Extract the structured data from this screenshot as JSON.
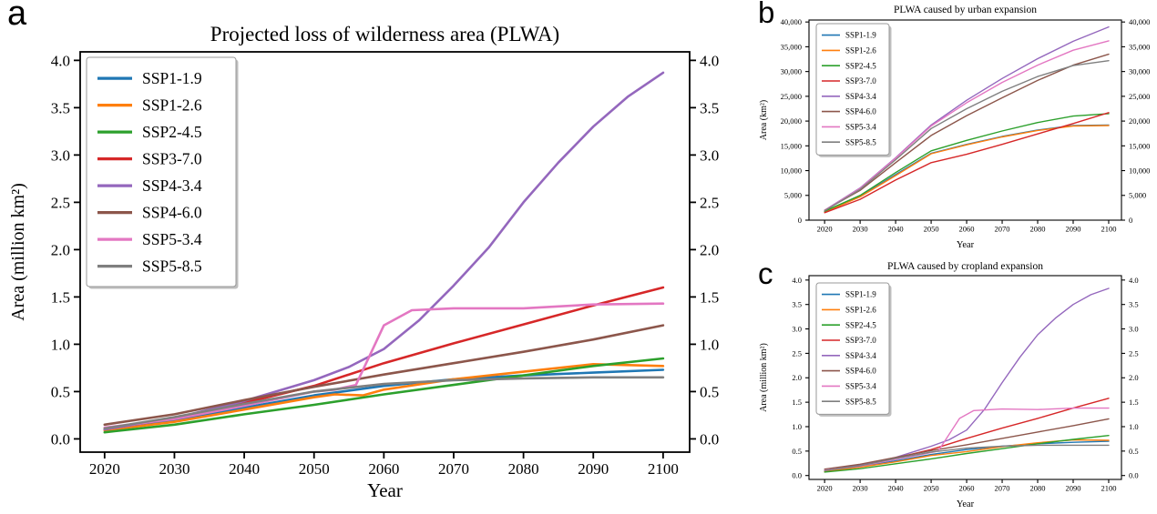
{
  "figure": {
    "background": "#ffffff"
  },
  "panels": {
    "a": {
      "letter": "a"
    },
    "b": {
      "letter": "b"
    },
    "c": {
      "letter": "c"
    }
  },
  "series_colors": {
    "SSP1-1.9": "#1f77b4",
    "SSP1-2.6": "#ff7f0e",
    "SSP2-4.5": "#2ca02c",
    "SSP3-7.0": "#d62728",
    "SSP4-3.4": "#9467bd",
    "SSP4-6.0": "#8c564b",
    "SSP5-3.4": "#e377c2",
    "SSP5-8.5": "#7f7f7f"
  },
  "chart_data": [
    {
      "id": "a",
      "type": "line",
      "title": "Projected loss of wilderness area (PLWA)",
      "xlabel": "Year",
      "ylabel": "Area (million km²)",
      "grid": false,
      "legend_position": "upper left",
      "x": [
        2020,
        2030,
        2040,
        2050,
        2060,
        2070,
        2080,
        2090,
        2100
      ],
      "xticks": [
        2020,
        2030,
        2040,
        2050,
        2060,
        2070,
        2080,
        2090,
        2100
      ],
      "xtick_labels": [
        "2020",
        "2030",
        "2040",
        "2050",
        "2060",
        "2070",
        "2080",
        "2090",
        "2100"
      ],
      "ytick_values": [
        0,
        0.5,
        1.0,
        1.5,
        2.0,
        2.5,
        3.0,
        3.5,
        4.0
      ],
      "ytick_labels": [
        "0.0",
        "0.5",
        "1.0",
        "1.5",
        "2.0",
        "2.5",
        "3.0",
        "3.5",
        "4.0"
      ],
      "xlim": [
        2016.5,
        2103.8
      ],
      "ylim": [
        -0.14,
        4.09
      ],
      "series": [
        {
          "name": "SSP1-1.9",
          "color": "#1f77b4",
          "values": [
            0.1,
            0.2,
            0.33,
            0.46,
            0.56,
            0.63,
            0.67,
            0.7,
            0.73
          ]
        },
        {
          "name": "SSP1-2.6",
          "color": "#ff7f0e",
          "x": [
            2020,
            2030,
            2040,
            2050,
            2053,
            2057,
            2060,
            2070,
            2080,
            2090,
            2100
          ],
          "values": [
            0.09,
            0.18,
            0.31,
            0.44,
            0.47,
            0.46,
            0.52,
            0.63,
            0.71,
            0.79,
            0.77
          ]
        },
        {
          "name": "SSP2-4.5",
          "color": "#2ca02c",
          "values": [
            0.07,
            0.15,
            0.26,
            0.36,
            0.47,
            0.57,
            0.67,
            0.77,
            0.85
          ]
        },
        {
          "name": "SSP3-7.0",
          "color": "#d62728",
          "values": [
            0.1,
            0.22,
            0.38,
            0.56,
            0.8,
            1.01,
            1.21,
            1.41,
            1.6
          ]
        },
        {
          "name": "SSP4-3.4",
          "color": "#9467bd",
          "x": [
            2020,
            2030,
            2040,
            2050,
            2055,
            2060,
            2065,
            2070,
            2075,
            2080,
            2085,
            2090,
            2095,
            2100
          ],
          "values": [
            0.1,
            0.22,
            0.4,
            0.62,
            0.76,
            0.95,
            1.25,
            1.62,
            2.02,
            2.5,
            2.92,
            3.3,
            3.62,
            3.87
          ]
        },
        {
          "name": "SSP4-6.0",
          "color": "#8c564b",
          "values": [
            0.15,
            0.26,
            0.41,
            0.55,
            0.68,
            0.8,
            0.92,
            1.05,
            1.2
          ]
        },
        {
          "name": "SSP5-3.4",
          "color": "#e377c2",
          "x": [
            2020,
            2030,
            2040,
            2050,
            2053,
            2056,
            2060,
            2064,
            2070,
            2080,
            2085,
            2090,
            2100
          ],
          "values": [
            0.12,
            0.21,
            0.35,
            0.5,
            0.52,
            0.57,
            1.2,
            1.36,
            1.38,
            1.38,
            1.4,
            1.42,
            1.43
          ]
        },
        {
          "name": "SSP5-8.5",
          "color": "#7f7f7f",
          "values": [
            0.11,
            0.23,
            0.37,
            0.5,
            0.58,
            0.62,
            0.64,
            0.65,
            0.65
          ]
        }
      ]
    },
    {
      "id": "b",
      "type": "line",
      "title": "PLWA caused by urban expansion",
      "xlabel": "Year",
      "ylabel": "Area (km²)",
      "grid": false,
      "legend_position": "upper left",
      "x": [
        2020,
        2030,
        2040,
        2050,
        2060,
        2070,
        2080,
        2090,
        2100
      ],
      "xticks": [
        2020,
        2030,
        2040,
        2050,
        2060,
        2070,
        2080,
        2090,
        2100
      ],
      "xtick_labels": [
        "2020",
        "2030",
        "2040",
        "2050",
        "2060",
        "2070",
        "2080",
        "2090",
        "2100"
      ],
      "ytick_values": [
        0,
        5000,
        10000,
        15000,
        20000,
        25000,
        30000,
        35000,
        40000
      ],
      "ytick_labels": [
        "0",
        "5,000",
        "10,000",
        "15,000",
        "20,000",
        "25,000",
        "30,000",
        "35,000",
        "40,000"
      ],
      "xlim": [
        2015.6,
        2103.6
      ],
      "ylim": [
        0,
        40400
      ],
      "series": [
        {
          "name": "SSP1-1.9",
          "color": "#1f77b4",
          "values": [
            1700,
            4800,
            9200,
            13500,
            15300,
            16900,
            18200,
            19100,
            19200
          ]
        },
        {
          "name": "SSP1-2.6",
          "color": "#ff7f0e",
          "values": [
            1600,
            4700,
            9000,
            13400,
            15200,
            16800,
            18100,
            19000,
            19100
          ]
        },
        {
          "name": "SSP2-4.5",
          "color": "#2ca02c",
          "values": [
            1800,
            5000,
            9600,
            14000,
            16100,
            18000,
            19700,
            21000,
            21500
          ]
        },
        {
          "name": "SSP3-7.0",
          "color": "#d62728",
          "values": [
            1500,
            4200,
            8100,
            11600,
            13300,
            15300,
            17400,
            19500,
            21700
          ]
        },
        {
          "name": "SSP4-3.4",
          "color": "#9467bd",
          "values": [
            2000,
            6500,
            12600,
            19200,
            24200,
            28600,
            32600,
            36100,
            39000
          ]
        },
        {
          "name": "SSP4-6.0",
          "color": "#8c564b",
          "values": [
            2000,
            6000,
            11600,
            17100,
            21100,
            24700,
            28200,
            31300,
            33500
          ]
        },
        {
          "name": "SSP5-3.4",
          "color": "#e377c2",
          "values": [
            1950,
            6400,
            12500,
            19000,
            23700,
            27800,
            31300,
            34300,
            36200
          ]
        },
        {
          "name": "SSP5-8.5",
          "color": "#7f7f7f",
          "values": [
            1900,
            6200,
            12200,
            18500,
            22500,
            26000,
            29000,
            31200,
            32200
          ]
        }
      ]
    },
    {
      "id": "c",
      "type": "line",
      "title": "PLWA caused by cropland expansion",
      "xlabel": "Year",
      "ylabel": "Area (million km²)",
      "grid": false,
      "legend_position": "upper left",
      "x": [
        2020,
        2030,
        2040,
        2050,
        2060,
        2070,
        2080,
        2090,
        2100
      ],
      "xticks": [
        2020,
        2030,
        2040,
        2050,
        2060,
        2070,
        2080,
        2090,
        2100
      ],
      "xtick_labels": [
        "2020",
        "2030",
        "2040",
        "2050",
        "2060",
        "2070",
        "2080",
        "2090",
        "2100"
      ],
      "ytick_values": [
        0,
        0.5,
        1.0,
        1.5,
        2.0,
        2.5,
        3.0,
        3.5,
        4.0
      ],
      "ytick_labels": [
        "0.0",
        "0.5",
        "1.0",
        "1.5",
        "2.0",
        "2.5",
        "3.0",
        "3.5",
        "4.0"
      ],
      "xlim": [
        2015.6,
        2103.6
      ],
      "ylim": [
        -0.08,
        4.09
      ],
      "series": [
        {
          "name": "SSP1-1.9",
          "color": "#1f77b4",
          "values": [
            0.09,
            0.18,
            0.3,
            0.43,
            0.53,
            0.6,
            0.65,
            0.68,
            0.7
          ]
        },
        {
          "name": "SSP1-2.6",
          "color": "#ff7f0e",
          "values": [
            0.08,
            0.17,
            0.28,
            0.41,
            0.49,
            0.59,
            0.67,
            0.73,
            0.72
          ]
        },
        {
          "name": "SSP2-4.5",
          "color": "#2ca02c",
          "values": [
            0.07,
            0.14,
            0.24,
            0.34,
            0.45,
            0.55,
            0.65,
            0.74,
            0.82
          ]
        },
        {
          "name": "SSP3-7.0",
          "color": "#d62728",
          "values": [
            0.1,
            0.21,
            0.36,
            0.53,
            0.76,
            0.97,
            1.17,
            1.38,
            1.58
          ]
        },
        {
          "name": "SSP4-3.4",
          "color": "#9467bd",
          "x": [
            2020,
            2030,
            2040,
            2050,
            2055,
            2060,
            2065,
            2070,
            2075,
            2080,
            2085,
            2090,
            2095,
            2100
          ],
          "values": [
            0.1,
            0.21,
            0.37,
            0.6,
            0.73,
            0.93,
            1.35,
            1.9,
            2.42,
            2.88,
            3.22,
            3.5,
            3.7,
            3.83
          ]
        },
        {
          "name": "SSP4-6.0",
          "color": "#8c564b",
          "values": [
            0.13,
            0.23,
            0.37,
            0.51,
            0.63,
            0.76,
            0.89,
            1.02,
            1.16
          ]
        },
        {
          "name": "SSP5-3.4",
          "color": "#e377c2",
          "x": [
            2020,
            2030,
            2040,
            2050,
            2052,
            2058,
            2062,
            2070,
            2080,
            2090,
            2100
          ],
          "values": [
            0.11,
            0.19,
            0.33,
            0.47,
            0.5,
            1.17,
            1.33,
            1.36,
            1.35,
            1.38,
            1.38
          ]
        },
        {
          "name": "SSP5-8.5",
          "color": "#7f7f7f",
          "values": [
            0.1,
            0.2,
            0.35,
            0.48,
            0.56,
            0.6,
            0.62,
            0.62,
            0.62
          ]
        }
      ]
    }
  ]
}
